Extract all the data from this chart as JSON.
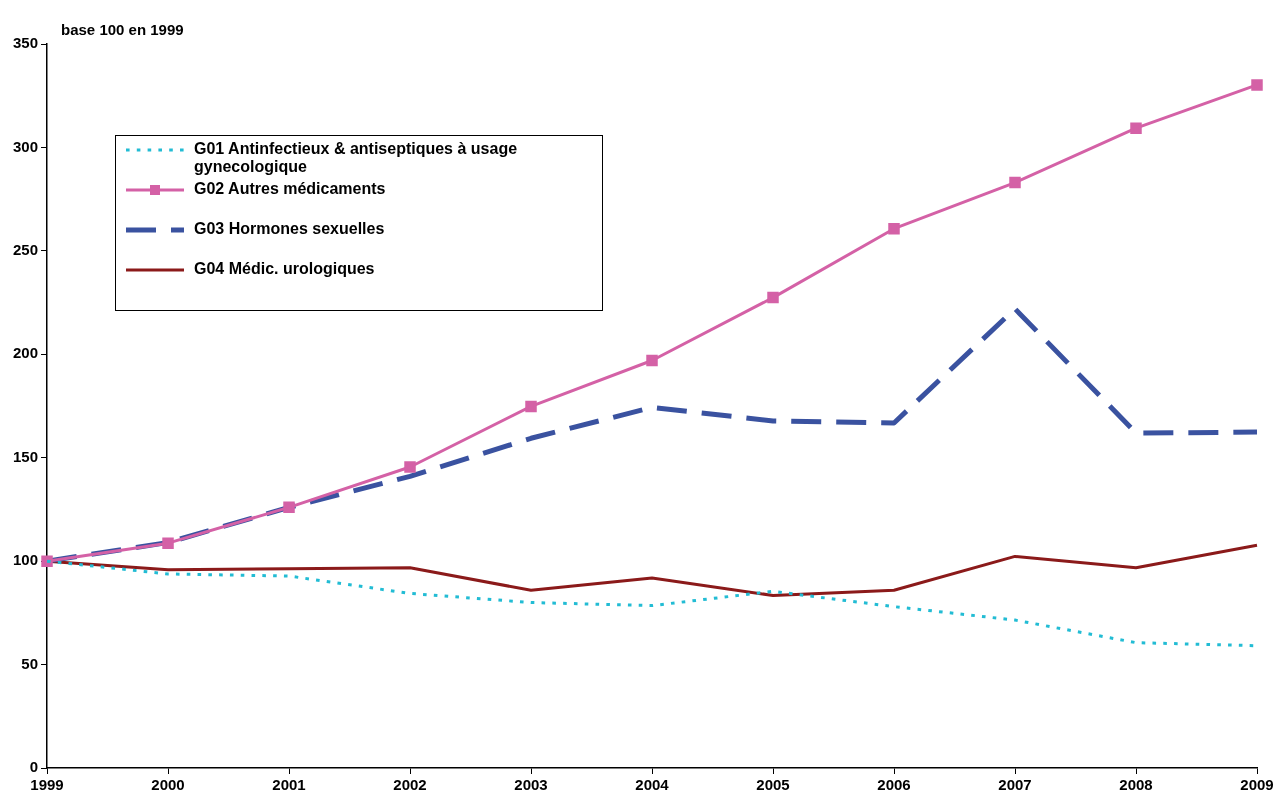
{
  "chart_data": {
    "type": "line",
    "ylabel": "base 100 en 1999",
    "categories": [
      "1999",
      "2000",
      "2001",
      "2002",
      "2003",
      "2004",
      "2005",
      "2006",
      "2007",
      "2008",
      "2009"
    ],
    "series": [
      {
        "name": "G01 Antinfectieux & antiseptiques à usage gynecologique",
        "color": "#22bcd4",
        "line_style": "dotted",
        "marker": "none",
        "values": [
          100,
          93.8,
          92.8,
          84.4,
          80,
          78.5,
          85.4,
          78,
          71.5,
          60.6,
          59.1
        ]
      },
      {
        "name": "G02 Autres médicaments",
        "color": "#d461a6",
        "line_style": "solid",
        "marker": "square",
        "values": [
          100,
          108.7,
          126,
          145.5,
          174.8,
          197,
          227.4,
          260.7,
          283,
          309.3,
          330.2
        ]
      },
      {
        "name": "G03 Hormones sexuelles",
        "color": "#3a52a0",
        "line_style": "dashed",
        "marker": "none",
        "values": [
          100,
          109,
          126,
          141,
          159.4,
          174.3,
          167.8,
          166.8,
          222,
          161.9,
          162.4
        ]
      },
      {
        "name": "G04 Médic. urologiques",
        "color": "#8b1a1a",
        "line_style": "solid",
        "marker": "none",
        "values": [
          100,
          95.8,
          96.3,
          96.8,
          85.9,
          91.9,
          83.4,
          85.9,
          102.3,
          96.8,
          107.7
        ]
      }
    ],
    "ylim": [
      0,
      350
    ],
    "yticks": [
      0,
      50,
      100,
      150,
      200,
      250,
      300,
      350
    ],
    "grid": false,
    "legend": "top left"
  }
}
